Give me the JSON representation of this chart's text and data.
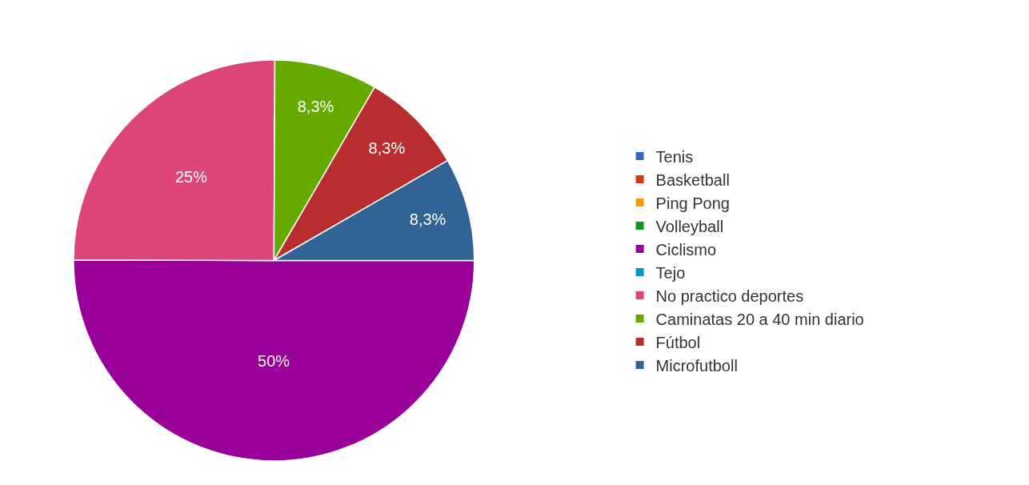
{
  "chart_data": {
    "type": "pie",
    "categories": [
      "Tenis",
      "Basketball",
      "Ping Pong",
      "Volleyball",
      "Ciclismo",
      "Tejo",
      "No practico deportes",
      "Caminatas 20 a 40 min diario",
      "Fútbol",
      "Microfutboll"
    ],
    "values": [
      0,
      0,
      0,
      0,
      50,
      0,
      25,
      8.3,
      8.3,
      8.3
    ],
    "value_labels": [
      null,
      null,
      null,
      null,
      "50%",
      null,
      "25%",
      "8,3%",
      "8,3%",
      "8,3%"
    ],
    "colors": [
      "#3366cc",
      "#dc3912",
      "#ff9900",
      "#109618",
      "#990099",
      "#0099c6",
      "#dd4477",
      "#66aa00",
      "#b82e2e",
      "#316395"
    ],
    "legend": "right"
  }
}
